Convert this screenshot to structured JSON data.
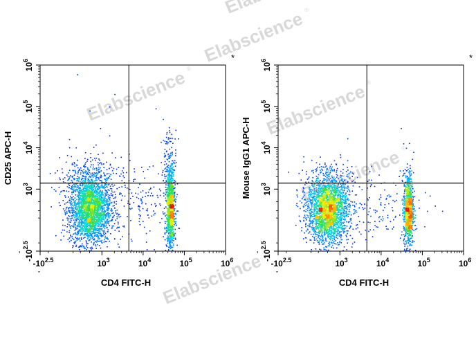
{
  "watermark": {
    "text": "Elabscience",
    "symbol": "®"
  },
  "chart_data": [
    {
      "type": "scatter",
      "name": "",
      "xlabel": "CD4 FITC-H",
      "ylabel": "CD25 APC-H",
      "x_scale": "biexponential",
      "y_scale": "biexponential",
      "x_ticks": [
        {
          "value": -316,
          "base": "-10",
          "exp": "2.5"
        },
        {
          "value": 1000,
          "base": "10",
          "exp": "3"
        },
        {
          "value": 10000,
          "base": "10",
          "exp": "4"
        },
        {
          "value": 100000,
          "base": "10",
          "exp": "5"
        },
        {
          "value": 1000000,
          "base": "10",
          "exp": "6"
        }
      ],
      "y_ticks": [
        {
          "value": -316,
          "base": "-10",
          "exp": "2.5"
        },
        {
          "value": 1000,
          "base": "10",
          "exp": "3"
        },
        {
          "value": 10000,
          "base": "10",
          "exp": "4"
        },
        {
          "value": 100000,
          "base": "10",
          "exp": "5"
        },
        {
          "value": 1000000,
          "base": "10",
          "exp": "6"
        }
      ],
      "gate_x": 4500,
      "gate_y": 1400,
      "annotation": "*",
      "populations": [
        {
          "label_text": "",
          "count": 2600,
          "x_center": 500,
          "x_spread": 0.25,
          "y_center": 330,
          "y_spread": 0.42
        },
        {
          "label_text": "",
          "count": 1100,
          "x_center": 45000,
          "x_spread": 0.05,
          "y_center": 330,
          "y_spread": 0.5
        },
        {
          "label_text": "",
          "count": 120,
          "x_center": 42000,
          "x_spread": 0.09,
          "y_center": 4000,
          "y_spread": 0.45
        },
        {
          "label_text": "",
          "count": 250,
          "x_center": 500,
          "x_spread": 0.4,
          "y_center": 2000,
          "y_spread": 0.3
        },
        {
          "label_text": "",
          "count": 160,
          "x_center": 8000,
          "x_spread": 0.45,
          "y_center": 400,
          "y_spread": 0.45
        }
      ],
      "outliers": [
        [
          250,
          600000
        ],
        [
          2000,
          200000
        ],
        [
          1500,
          100000
        ],
        [
          500,
          80000
        ],
        [
          30000,
          50000
        ],
        [
          20000,
          90000
        ],
        [
          900,
          30000
        ],
        [
          1500,
          20000
        ],
        [
          700,
          12000
        ]
      ]
    },
    {
      "type": "scatter",
      "name": "",
      "xlabel": "CD4 FITC-H",
      "ylabel": "Mouse IgG1 APC-H",
      "x_scale": "biexponential",
      "y_scale": "biexponential",
      "x_ticks": [
        {
          "value": -316,
          "base": "-10",
          "exp": "2.5"
        },
        {
          "value": 1000,
          "base": "10",
          "exp": "3"
        },
        {
          "value": 10000,
          "base": "10",
          "exp": "4"
        },
        {
          "value": 100000,
          "base": "10",
          "exp": "5"
        },
        {
          "value": 1000000,
          "base": "10",
          "exp": "6"
        }
      ],
      "y_ticks": [
        {
          "value": -316,
          "base": "-10",
          "exp": "2.5"
        },
        {
          "value": 1000,
          "base": "10",
          "exp": "3"
        },
        {
          "value": 10000,
          "base": "10",
          "exp": "4"
        },
        {
          "value": 100000,
          "base": "10",
          "exp": "5"
        },
        {
          "value": 1000000,
          "base": "10",
          "exp": "6"
        }
      ],
      "gate_x": 4500,
      "gate_y": 1400,
      "annotation": "*",
      "populations": [
        {
          "label_text": "",
          "count": 2500,
          "x_center": 500,
          "x_spread": 0.25,
          "y_center": 330,
          "y_spread": 0.4
        },
        {
          "label_text": "",
          "count": 950,
          "x_center": 45000,
          "x_spread": 0.06,
          "y_center": 320,
          "y_spread": 0.45
        },
        {
          "label_text": "",
          "count": 130,
          "x_center": 9000,
          "x_spread": 0.45,
          "y_center": 380,
          "y_spread": 0.4
        },
        {
          "label_text": "",
          "count": 80,
          "x_center": 500,
          "x_spread": 0.4,
          "y_center": 1800,
          "y_spread": 0.3
        }
      ],
      "outliers": [
        [
          30000,
          30000
        ],
        [
          40000,
          10000
        ],
        [
          60000,
          8000
        ],
        [
          1500,
          5000
        ],
        [
          800,
          4000
        ],
        [
          150000,
          700
        ],
        [
          200000,
          400
        ],
        [
          300000,
          300
        ]
      ]
    }
  ]
}
